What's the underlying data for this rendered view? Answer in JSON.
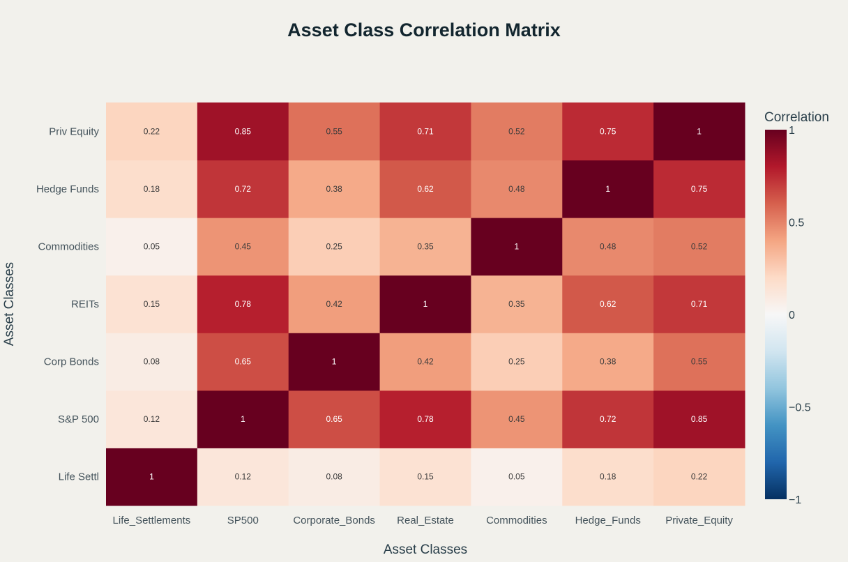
{
  "chart_data": {
    "type": "heatmap",
    "title": "Asset Class Correlation Matrix",
    "xlabel": "Asset Classes",
    "ylabel": "Asset Classes",
    "x_categories": [
      "Life_Settlements",
      "SP500",
      "Corporate_Bonds",
      "Real_Estate",
      "Commodities",
      "Hedge_Funds",
      "Private_Equity"
    ],
    "y_categories": [
      "Life Settl",
      "S&P 500",
      "Corp Bonds",
      "REITs",
      "Commodities",
      "Hedge Funds",
      "Priv Equity"
    ],
    "values": [
      [
        1,
        0.12,
        0.08,
        0.15,
        0.05,
        0.18,
        0.22
      ],
      [
        0.12,
        1,
        0.65,
        0.78,
        0.45,
        0.72,
        0.85
      ],
      [
        0.08,
        0.65,
        1,
        0.42,
        0.25,
        0.38,
        0.55
      ],
      [
        0.15,
        0.78,
        0.42,
        1,
        0.35,
        0.62,
        0.71
      ],
      [
        0.05,
        0.45,
        0.25,
        0.35,
        1,
        0.48,
        0.52
      ],
      [
        0.18,
        0.72,
        0.38,
        0.62,
        0.48,
        1,
        0.75
      ],
      [
        0.22,
        0.85,
        0.55,
        0.71,
        0.52,
        0.75,
        1
      ]
    ],
    "colorscale": "RdBu",
    "zrange": [
      -1,
      1
    ],
    "colorbar": {
      "title": "Correlation",
      "ticks": [
        1,
        0.5,
        0,
        -0.5,
        -1
      ],
      "tick_labels": [
        "1",
        "0.5",
        "0",
        "−0.5",
        "−1"
      ]
    }
  }
}
